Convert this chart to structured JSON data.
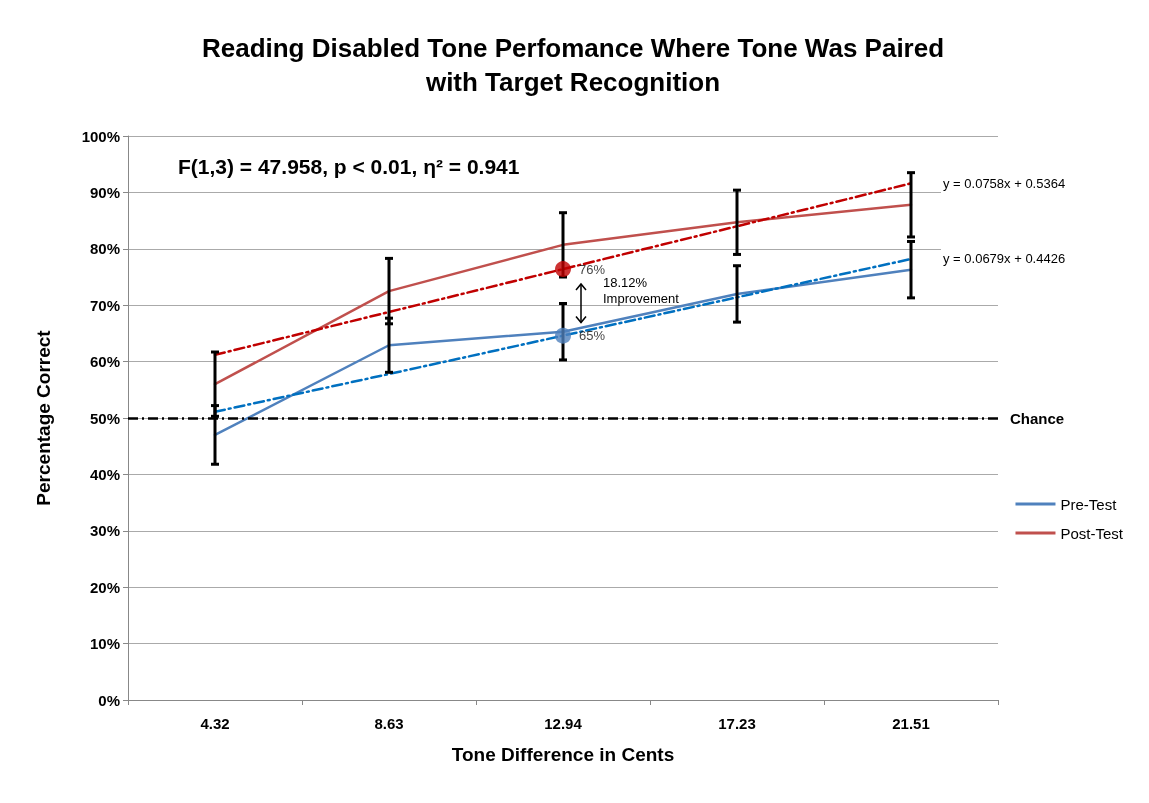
{
  "chart_data": {
    "type": "line",
    "title": "Reading Disabled Tone Perfomance Where Tone Was Paired\nwith Target Recognition",
    "xlabel": "Tone Difference in Cents",
    "ylabel": "Percentage Correct",
    "categories": [
      "4.32",
      "8.63",
      "12.94",
      "17.23",
      "21.51"
    ],
    "series": [
      {
        "name": "Pre-Test",
        "color": "#4f81bd",
        "values": [
          47,
          62.9,
          65.3,
          72,
          76.3
        ],
        "errors": [
          5.2,
          4.8,
          5,
          5,
          5
        ]
      },
      {
        "name": "Post-Test",
        "color": "#c0504d",
        "values": [
          56,
          72.5,
          80.7,
          84.7,
          87.8
        ],
        "errors": [
          5.7,
          5.8,
          5.7,
          5.7,
          5.7
        ]
      },
      {
        "type": "line",
        "color": "#0070c0",
        "line_style": "dashed",
        "x": [
          "4.32",
          "8.63",
          "12.94",
          "17.23",
          "21.51"
        ],
        "values": [
          51.1,
          57.8,
          64.6,
          71.4,
          78.2
        ]
      },
      {
        "type": "line",
        "color": "#c00000",
        "line_style": "dashed",
        "x": [
          "4.32",
          "8.63",
          "12.94",
          "17.23",
          "21.51"
        ],
        "values": [
          61.2,
          68.8,
          76.4,
          84.0,
          91.6
        ]
      },
      {
        "type": "scatter",
        "color": "#4f81bd",
        "marker": "circle",
        "x": [
          "12.94"
        ],
        "values": [
          64.6
        ],
        "value_labels": [
          "65%"
        ]
      },
      {
        "type": "scatter",
        "color": "#c00000",
        "marker": "circle",
        "x": [
          "12.94"
        ],
        "values": [
          76.4
        ],
        "value_labels": [
          "76%"
        ]
      }
    ],
    "ylim": [
      0,
      100
    ],
    "yticks": [
      {
        "value": 0,
        "label": "0%"
      },
      {
        "value": 10,
        "label": "10%"
      },
      {
        "value": 20,
        "label": "20%"
      },
      {
        "value": 30,
        "label": "30%"
      },
      {
        "value": 40,
        "label": "40%"
      },
      {
        "value": 50,
        "label": "50%"
      },
      {
        "value": 60,
        "label": "60%"
      },
      {
        "value": 70,
        "label": "70%"
      },
      {
        "value": 80,
        "label": "80%"
      },
      {
        "value": 90,
        "label": "90%"
      },
      {
        "value": 100,
        "label": "100%"
      }
    ],
    "ref_lines": [
      {
        "axis": "y",
        "value": 50,
        "label": "Chance",
        "color": "#000000",
        "line_style": "dashed"
      }
    ],
    "annotations": [
      "F(1,3) = 47.958, p < 0.01, η² = 0.941",
      {
        "text": "y = 0.0758x + 0.5364",
        "x": "21.51",
        "y": 91.6
      },
      {
        "text": "y = 0.0679x + 0.4426",
        "x": "21.51",
        "y": 78.2
      },
      "18.12%\nImprovement"
    ],
    "grid": "y",
    "legend": "right",
    "marker": "none",
    "line_style": "solid"
  }
}
